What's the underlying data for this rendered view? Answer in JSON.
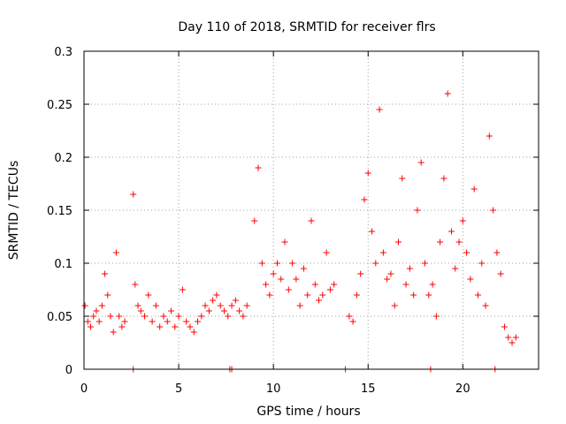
{
  "chart_data": {
    "type": "scatter",
    "title": "Day 110 of 2018, SRMTID for receiver flrs",
    "xlabel": "GPS time / hours",
    "ylabel": "SRMTID / TECUs",
    "xlim": [
      0,
      24
    ],
    "ylim": [
      0,
      0.3
    ],
    "xticks": [
      0,
      5,
      10,
      15,
      20
    ],
    "xtick_labels": [
      "0",
      "5",
      "10",
      "15",
      "20"
    ],
    "yticks": [
      0,
      0.05,
      0.1,
      0.15,
      0.2,
      0.25,
      0.3
    ],
    "ytick_labels": [
      "0",
      "0.05",
      "0.1",
      "0.15",
      "0.2",
      "0.25",
      "0.3"
    ],
    "grid": true,
    "marker": "+",
    "series": [
      {
        "name": "SRMTID",
        "color": "#ff0000",
        "x": [
          0.05,
          0.2,
          0.35,
          0.5,
          0.65,
          0.8,
          0.95,
          1.1,
          1.25,
          1.4,
          1.55,
          1.7,
          1.85,
          2.0,
          2.15,
          2.6,
          2.7,
          2.85,
          3.0,
          3.2,
          3.4,
          3.6,
          3.8,
          4.0,
          4.2,
          4.4,
          4.6,
          4.8,
          5.0,
          5.2,
          5.4,
          5.6,
          5.8,
          6.0,
          6.2,
          6.4,
          6.6,
          6.8,
          7.0,
          7.2,
          7.4,
          7.6,
          7.8,
          8.0,
          8.2,
          8.4,
          8.6,
          9.0,
          9.2,
          9.4,
          9.6,
          9.8,
          10.0,
          10.2,
          10.4,
          10.6,
          10.8,
          11.0,
          11.2,
          11.4,
          11.6,
          11.8,
          12.0,
          12.2,
          12.4,
          12.6,
          12.8,
          13.0,
          13.2,
          14.0,
          14.2,
          14.4,
          14.6,
          14.8,
          15.0,
          15.2,
          15.4,
          15.6,
          15.8,
          16.0,
          16.2,
          16.4,
          16.6,
          16.8,
          17.0,
          17.2,
          17.4,
          17.6,
          17.8,
          18.0,
          18.2,
          18.4,
          18.6,
          18.8,
          19.0,
          19.2,
          19.4,
          19.6,
          19.8,
          20.0,
          20.2,
          20.4,
          20.6,
          20.8,
          21.0,
          21.2,
          21.4,
          21.6,
          21.8,
          22.0,
          22.2,
          22.4,
          22.6,
          22.8,
          2.6,
          7.7,
          7.8,
          13.8,
          18.3,
          21.7
        ],
        "y": [
          0.06,
          0.045,
          0.04,
          0.05,
          0.055,
          0.045,
          0.06,
          0.09,
          0.07,
          0.05,
          0.035,
          0.11,
          0.05,
          0.04,
          0.045,
          0.165,
          0.08,
          0.06,
          0.055,
          0.05,
          0.07,
          0.045,
          0.06,
          0.04,
          0.05,
          0.045,
          0.055,
          0.04,
          0.05,
          0.075,
          0.045,
          0.04,
          0.035,
          0.045,
          0.05,
          0.06,
          0.055,
          0.065,
          0.07,
          0.06,
          0.055,
          0.05,
          0.06,
          0.065,
          0.055,
          0.05,
          0.06,
          0.14,
          0.19,
          0.1,
          0.08,
          0.07,
          0.09,
          0.1,
          0.085,
          0.12,
          0.075,
          0.1,
          0.085,
          0.06,
          0.095,
          0.07,
          0.14,
          0.08,
          0.065,
          0.07,
          0.11,
          0.075,
          0.08,
          0.05,
          0.045,
          0.07,
          0.09,
          0.16,
          0.185,
          0.13,
          0.1,
          0.245,
          0.11,
          0.085,
          0.09,
          0.06,
          0.12,
          0.18,
          0.08,
          0.095,
          0.07,
          0.15,
          0.195,
          0.1,
          0.07,
          0.08,
          0.05,
          0.12,
          0.18,
          0.26,
          0.13,
          0.095,
          0.12,
          0.14,
          0.11,
          0.085,
          0.17,
          0.07,
          0.1,
          0.06,
          0.22,
          0.15,
          0.11,
          0.09,
          0.04,
          0.03,
          0.025,
          0.03,
          0,
          0,
          0,
          0,
          0,
          0
        ]
      }
    ]
  }
}
